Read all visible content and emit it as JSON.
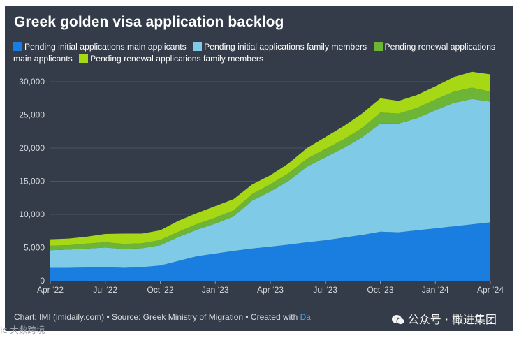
{
  "title": "Greek golden visa application backlog",
  "footer": {
    "text": "Chart: IMI (imidaily.com) • Source: Greek Ministry of Migration • Created with ",
    "link": "Da"
  },
  "watermarks": {
    "wechat": "公众号 · 橄进集团",
    "corner": "大数跨境",
    "corner_prefix": "ic"
  },
  "colors": {
    "background": "#333c48",
    "grid": "#4b5460",
    "axis_text": "#d7dbe0",
    "main_applicants": "#1a7ee0",
    "family_members": "#7fcbe7",
    "renewal_main": "#6db536",
    "renewal_family": "#a6d816"
  },
  "chart_data": {
    "type": "area",
    "stacked": true,
    "title": "Greek golden visa application backlog",
    "xlabel": "",
    "ylabel": "",
    "ylim": [
      0,
      30000
    ],
    "yticks": [
      0,
      5000,
      10000,
      15000,
      20000,
      25000,
      30000
    ],
    "ytick_labels": [
      "0",
      "5,000",
      "10,000",
      "15,000",
      "20,000",
      "25,000",
      "30,000"
    ],
    "xticks": [
      "Apr ‘22",
      "Jul ‘22",
      "Oct ‘22",
      "Jan ‘23",
      "Apr ‘23",
      "Jul ‘23",
      "Oct ‘23",
      "Jan ‘24",
      "Apr ‘24"
    ],
    "legend_position": "top",
    "x": [
      "2022-04",
      "2022-05",
      "2022-06",
      "2022-07",
      "2022-08",
      "2022-09",
      "2022-10",
      "2022-11",
      "2022-12",
      "2023-01",
      "2023-02",
      "2023-03",
      "2023-04",
      "2023-05",
      "2023-06",
      "2023-07",
      "2023-08",
      "2023-09",
      "2023-10",
      "2023-11",
      "2023-12",
      "2024-01",
      "2024-02",
      "2024-03",
      "2024-04"
    ],
    "series": [
      {
        "name": "Pending initial applications main applicants",
        "color": "#1a7ee0",
        "values": [
          1950,
          1950,
          2000,
          2050,
          1950,
          2050,
          2300,
          3000,
          3700,
          4100,
          4500,
          4850,
          5150,
          5450,
          5800,
          6100,
          6500,
          6900,
          7400,
          7300,
          7600,
          7900,
          8200,
          8500,
          8800
        ]
      },
      {
        "name": "Pending initial applications family members",
        "color": "#7fcbe7",
        "values": [
          2650,
          2750,
          2850,
          2950,
          2850,
          2850,
          3050,
          3600,
          4000,
          4500,
          5200,
          7200,
          8300,
          9600,
          11400,
          12500,
          13500,
          14700,
          16300,
          16400,
          16900,
          17800,
          18600,
          18900,
          18200
        ]
      },
      {
        "name": "Pending renewal applications main applicants",
        "color": "#6db536",
        "values": [
          700,
          650,
          750,
          800,
          750,
          750,
          800,
          800,
          850,
          900,
          900,
          1000,
          1100,
          1150,
          1200,
          1250,
          1300,
          1400,
          1650,
          1500,
          1550,
          1600,
          1700,
          1700,
          1500
        ]
      },
      {
        "name": "Pending renewal applications family members",
        "color": "#a6d816",
        "values": [
          950,
          1000,
          1050,
          1250,
          1550,
          1450,
          1450,
          1650,
          1650,
          1750,
          1700,
          1450,
          1350,
          1500,
          1600,
          1800,
          2000,
          2200,
          2150,
          1900,
          1950,
          2000,
          2200,
          2400,
          2600
        ]
      }
    ]
  }
}
